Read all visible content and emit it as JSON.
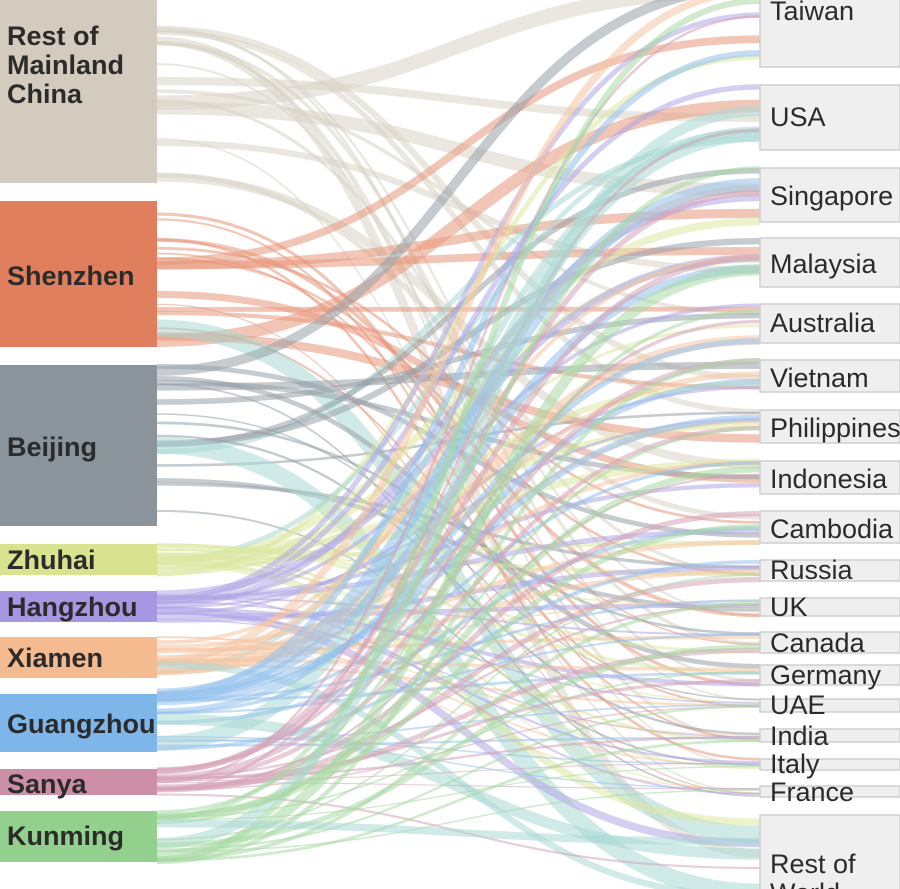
{
  "sources": [
    {
      "key": "rest-mainland",
      "lines": [
        "Rest of",
        "Mainland",
        "China"
      ],
      "color": "#d3cbbd",
      "flow_color": "#d9d3c6"
    },
    {
      "key": "shenzhen",
      "lines": [
        "Shenzhen"
      ],
      "color": "#e07f5d",
      "flow_color": "#e8977b"
    },
    {
      "key": "beijing",
      "lines": [
        "Beijing"
      ],
      "color": "#8b939b",
      "flow_color": "#98a0a8"
    },
    {
      "key": "zhuhai",
      "lines": [
        "Zhuhai"
      ],
      "color": "#d7e38e",
      "flow_color": "#dde8a3"
    },
    {
      "key": "hangzhou",
      "lines": [
        "Hangzhou"
      ],
      "color": "#a597e2",
      "flow_color": "#b1a6e6"
    },
    {
      "key": "xiamen",
      "lines": [
        "Xiamen"
      ],
      "color": "#f4bb91",
      "flow_color": "#f4c5a3"
    },
    {
      "key": "guangzhou",
      "lines": [
        "Guangzhou"
      ],
      "color": "#7fb6ea",
      "flow_color": "#93c1ec"
    },
    {
      "key": "sanya",
      "lines": [
        "Sanya"
      ],
      "color": "#cc8fa5",
      "flow_color": "#d6a3b6"
    },
    {
      "key": "kunming",
      "lines": [
        "Kunming"
      ],
      "color": "#93d08d",
      "flow_color": "#a7d9a2"
    }
  ],
  "destinations": [
    {
      "key": "taiwan",
      "label": "Taiwan"
    },
    {
      "key": "usa",
      "label": "USA"
    },
    {
      "key": "singapore",
      "label": "Singapore"
    },
    {
      "key": "malaysia",
      "label": "Malaysia"
    },
    {
      "key": "australia",
      "label": "Australia"
    },
    {
      "key": "vietnam",
      "label": "Vietnam"
    },
    {
      "key": "philippines",
      "label": "Philippines"
    },
    {
      "key": "indonesia",
      "label": "Indonesia"
    },
    {
      "key": "cambodia",
      "label": "Cambodia"
    },
    {
      "key": "russia",
      "label": "Russia"
    },
    {
      "key": "uk",
      "label": "UK"
    },
    {
      "key": "canada",
      "label": "Canada"
    },
    {
      "key": "germany",
      "label": "Germany"
    },
    {
      "key": "uae",
      "label": "UAE"
    },
    {
      "key": "india",
      "label": "India"
    },
    {
      "key": "italy",
      "label": "Italy"
    },
    {
      "key": "france",
      "label": "France"
    },
    {
      "key": "rest-world",
      "label": "Rest of World"
    }
  ],
  "accent_flow_color": "#a9d9d4",
  "node_fill_right": "#efefef",
  "node_stroke_right": "#cfcfcf"
}
